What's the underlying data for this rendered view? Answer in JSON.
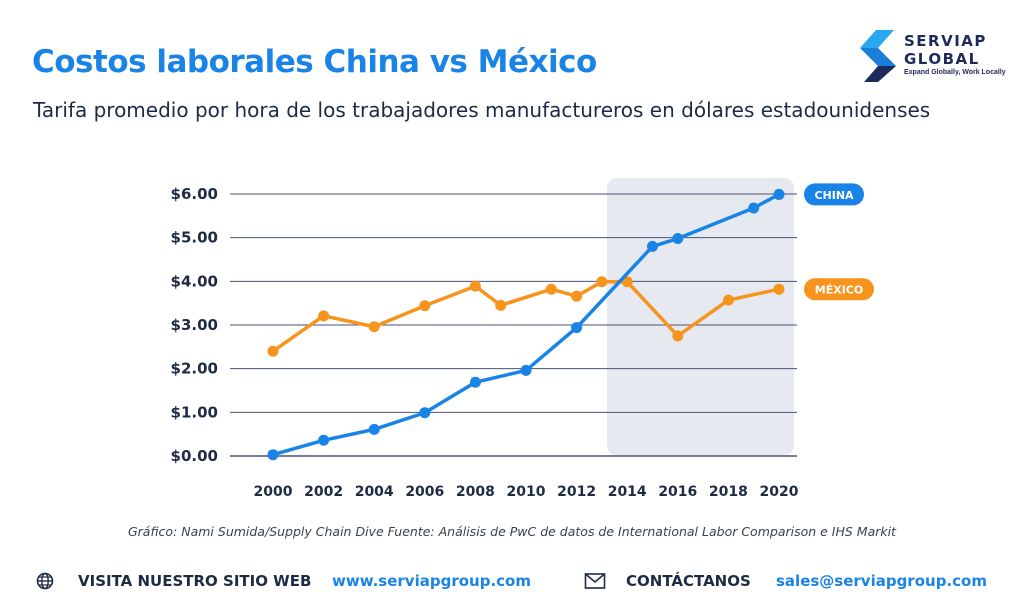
{
  "title": "Costos laborales China vs México",
  "subtitle": "Tarifa promedio por hora de los trabajadores manufactureros en dólares estadounidenses",
  "logo": {
    "line1": "SERVIAP",
    "line2": "GLOBAL",
    "tagline": "Expand Globally, Work Locally"
  },
  "source": "Gráfico: Nami Sumida/Supply Chain Dive Fuente: Análisis de PwC de datos de International Labor Comparison e IHS Markit",
  "footer": {
    "website_label": "VISITA NUESTRO SITIO WEB",
    "website_url": "www.serviapgroup.com",
    "contact_label": "CONTÁCTANOS",
    "contact_email": "sales@serviapgroup.com",
    "icons": [
      "globe-icon",
      "envelope-icon"
    ]
  },
  "colors": {
    "title": "#1a84e6",
    "china": "#1a84e6",
    "mexico": "#f7941d",
    "highlight": "#e6e9ef",
    "grid": "#4a5275"
  },
  "chart_data": {
    "type": "line",
    "x": [
      2000,
      2001,
      2002,
      2003,
      2004,
      2005,
      2006,
      2007,
      2008,
      2009,
      2010,
      2011,
      2012,
      2013,
      2014,
      2015,
      2016,
      2017,
      2018,
      2019,
      2020
    ],
    "x_ticks": [
      "2000",
      "2002",
      "2004",
      "2006",
      "2008",
      "2010",
      "2012",
      "2014",
      "2016",
      "2018",
      "2020"
    ],
    "y_ticks": [
      "$0.00",
      "$1.00",
      "$2.00",
      "$3.00",
      "$4.00",
      "$5.00",
      "$6.00"
    ],
    "ylim": [
      0,
      6
    ],
    "xlim": [
      2000,
      2020
    ],
    "highlight_range": [
      2013.2,
      2020.6
    ],
    "series": [
      {
        "name": "CHINA",
        "color": "#1a84e6",
        "points": [
          [
            2000,
            0.03
          ],
          [
            2002,
            0.36
          ],
          [
            2004,
            0.61
          ],
          [
            2006,
            0.99
          ],
          [
            2008,
            1.69
          ],
          [
            2010,
            1.96
          ],
          [
            2012,
            2.94
          ],
          [
            2015,
            4.8
          ],
          [
            2016,
            4.98
          ],
          [
            2019,
            5.68
          ],
          [
            2020,
            5.99
          ]
        ]
      },
      {
        "name": "MÉXICO",
        "color": "#f7941d",
        "points": [
          [
            2000,
            2.4
          ],
          [
            2002,
            3.21
          ],
          [
            2004,
            2.96
          ],
          [
            2006,
            3.44
          ],
          [
            2008,
            3.89
          ],
          [
            2009,
            3.45
          ],
          [
            2011,
            3.82
          ],
          [
            2012,
            3.66
          ],
          [
            2013,
            3.99
          ],
          [
            2014,
            3.99
          ],
          [
            2016,
            2.75
          ],
          [
            2018,
            3.57
          ],
          [
            2020,
            3.82
          ]
        ]
      }
    ],
    "grid": true,
    "legend": "right (labels at line ends)"
  }
}
